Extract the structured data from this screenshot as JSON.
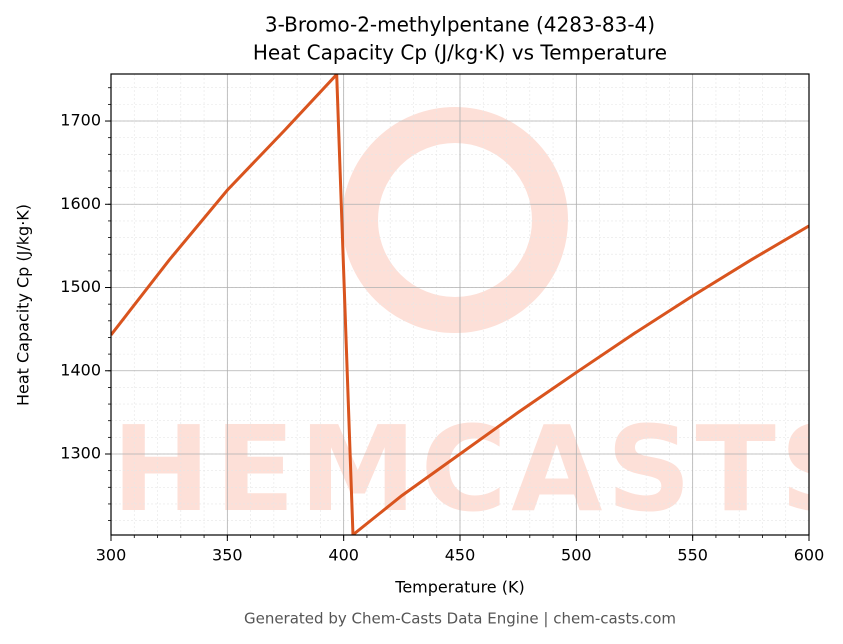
{
  "chart_data": {
    "type": "line",
    "title": "3-Bromo-2-methylpentane (4283-83-4)",
    "subtitle": "Heat Capacity Cp (J/kg·K) vs Temperature",
    "x_label": "Temperature (K)",
    "y_label": "Heat Capacity Cp (J/kg·K)",
    "x": [
      300,
      325,
      350,
      375,
      397,
      404,
      425,
      450,
      475,
      500,
      525,
      550,
      575,
      600
    ],
    "series": [
      {
        "name": "Cp",
        "color": "#d9541e",
        "values": [
          1443,
          1533,
          1617,
          1690,
          1756,
          1203,
          1250,
          1300,
          1350,
          1398,
          1445,
          1490,
          1533,
          1574
        ]
      }
    ],
    "xlim": [
      300,
      600
    ],
    "xticks": [
      300,
      350,
      400,
      450,
      500,
      550,
      600
    ],
    "ylim": [
      1202.7,
      1756.5
    ],
    "yticks": [
      1300,
      1400,
      1500,
      1600,
      1700
    ],
    "grid": true,
    "watermark": "CHEMCASTS",
    "footer": "Generated by Chem-Casts Data Engine | chem-casts.com"
  }
}
